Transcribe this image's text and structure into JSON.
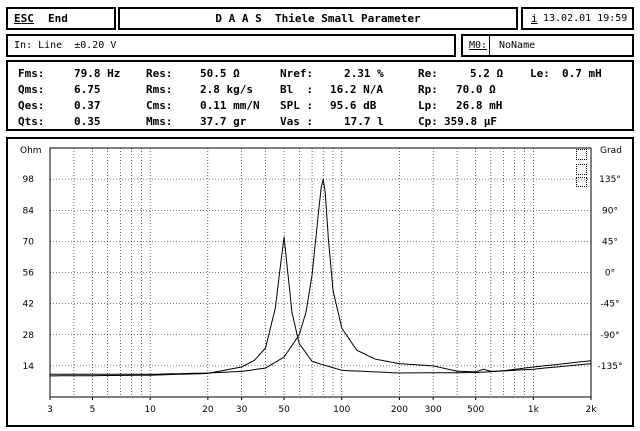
{
  "header": {
    "esc_key": "ESC",
    "esc_label": "End",
    "title": "D A A S  Thiele Small Parameter",
    "info_icon_label": "i",
    "datetime": "13.02.01 19:59"
  },
  "status": {
    "input": "In: Line  ±0.20 V",
    "memory_label": "M0:",
    "memory_value": "NoName"
  },
  "params": [
    [
      {
        "label": "Fms:",
        "value": "79.8 Hz"
      },
      {
        "label": "Res:",
        "value": "50.5 Ω"
      },
      {
        "label": "Nref:",
        "value": "2.31 %"
      },
      {
        "label": "Re:",
        "value": "5.2 Ω"
      },
      {
        "label": "Le:",
        "value": "0.7 mH"
      }
    ],
    [
      {
        "label": "Qms:",
        "value": "6.75"
      },
      {
        "label": "Rms:",
        "value": "2.8 kg/s"
      },
      {
        "label": "Bl  :",
        "value": "16.2 N/A"
      },
      {
        "label": "Rp:",
        "value": "70.0 Ω"
      }
    ],
    [
      {
        "label": "Qes:",
        "value": "0.37"
      },
      {
        "label": "Cms:",
        "value": "0.11 mm/N"
      },
      {
        "label": "SPL :",
        "value": "95.6 dB"
      },
      {
        "label": "Lp:",
        "value": "26.8 mH"
      }
    ],
    [
      {
        "label": "Qts:",
        "value": "0.35"
      },
      {
        "label": "Mms:",
        "value": "37.7 gr"
      },
      {
        "label": "Vas :",
        "value": "17.7 l"
      },
      {
        "label": "Cp:",
        "value": "359.8 µF"
      }
    ]
  ],
  "chart_data": {
    "type": "line",
    "left_axis_label": "Ohm",
    "right_axis_label": "Grad",
    "x_scale": "log",
    "xlim": [
      3,
      2000
    ],
    "x_ticks": [
      "3",
      "5",
      "10",
      "20",
      "30",
      "50",
      "100",
      "200",
      "300",
      "500",
      "1k",
      "2k"
    ],
    "x_tick_values": [
      3,
      5,
      10,
      20,
      30,
      50,
      100,
      200,
      300,
      500,
      1000,
      2000
    ],
    "ylim": [
      0,
      112
    ],
    "y_ticks": [
      "98",
      "84",
      "70",
      "56",
      "42",
      "28",
      "14"
    ],
    "y_tick_values": [
      98,
      84,
      70,
      56,
      42,
      28,
      14
    ],
    "phase_lim": [
      -180,
      180
    ],
    "phase_ticks": [
      "135°",
      "90°",
      "45°",
      "0°",
      "-45°",
      "-90°",
      "-135°"
    ],
    "phase_tick_values": [
      135,
      90,
      45,
      0,
      -45,
      -90,
      -135
    ],
    "grid": true,
    "series": [
      {
        "x": [
          3,
          5,
          10,
          20,
          30,
          35,
          40,
          45,
          48,
          50,
          52,
          55,
          60,
          70,
          100,
          200,
          500,
          1000,
          2000
        ],
        "y": [
          9.5,
          9.6,
          9.8,
          10.6,
          13.5,
          16.5,
          22,
          40,
          60,
          72,
          58,
          38,
          24,
          16,
          12,
          10.8,
          11,
          12.5,
          15
        ]
      },
      {
        "x": [
          3,
          10,
          20,
          30,
          40,
          50,
          60,
          65,
          70,
          75,
          78,
          80,
          82,
          85,
          90,
          100,
          120,
          150,
          200,
          300,
          400,
          500,
          550,
          600,
          700,
          1000,
          2000
        ],
        "y": [
          10.2,
          10.2,
          10.8,
          11.5,
          13,
          18,
          28,
          38,
          55,
          80,
          94,
          98,
          92,
          72,
          48,
          31,
          21,
          17,
          15,
          14,
          11.6,
          11.3,
          12.5,
          11.5,
          11.8,
          13.5,
          16.3
        ]
      }
    ]
  }
}
